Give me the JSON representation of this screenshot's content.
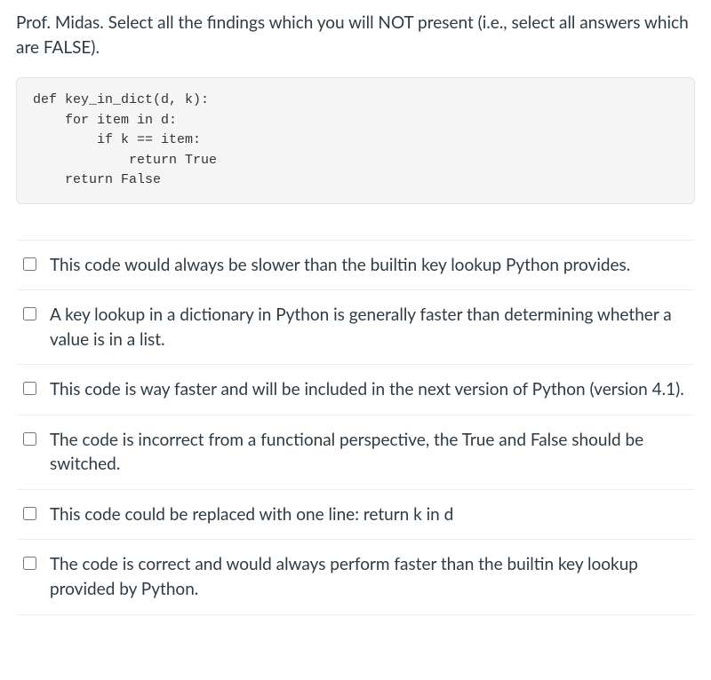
{
  "question": {
    "prompt": "Prof. Midas. Select all the findings which you will NOT present (i.e., select all answers which are FALSE).",
    "code": "def key_in_dict(d, k):\n    for item in d:\n        if k == item:\n            return True\n    return False"
  },
  "answers": [
    {
      "label": "This code would always be slower than the builtin key lookup Python provides."
    },
    {
      "label": "A key lookup in a dictionary in Python is generally faster than determining whether a value is in a list."
    },
    {
      "label": "This code is way faster and will be included in the next version of Python (version 4.1)."
    },
    {
      "label": "The code is incorrect from a functional perspective, the True and False should be switched."
    },
    {
      "label": "This code could be replaced with one line: return k in d"
    },
    {
      "label": "The code is correct and would always perform faster than the builtin key lookup provided by Python."
    }
  ],
  "colors": {
    "text": "#2d3b45",
    "code_bg": "#f5f5f5",
    "code_border": "#e4e4e4",
    "divider": "#eeeeee",
    "background": "#ffffff"
  },
  "typography": {
    "body_fontsize": 19,
    "code_fontsize": 15,
    "body_family": "Lato, Helvetica Neue, Arial, sans-serif",
    "code_family": "Menlo, Consolas, Courier New, monospace"
  }
}
